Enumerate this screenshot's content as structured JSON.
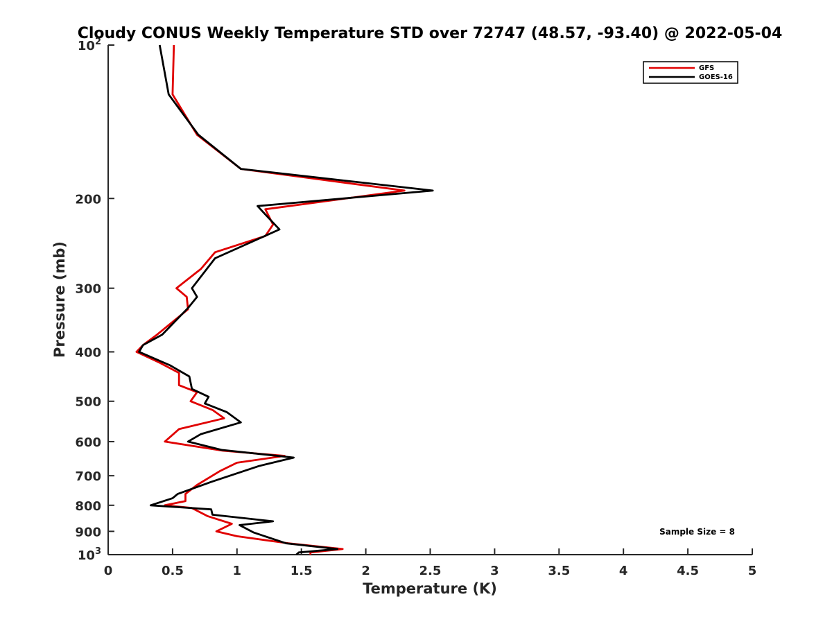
{
  "chart_data": {
    "type": "line",
    "title": "Cloudy CONUS Weekly Temperature STD over 72747 (48.57, -93.40) @ 2022-05-04",
    "xlabel": "Temperature (K)",
    "ylabel": "Pressure (mb)",
    "xlim": [
      0,
      5
    ],
    "ylim": [
      100,
      1000
    ],
    "yscale": "log",
    "y_reversed": true,
    "grid": false,
    "legend_position": "top-right",
    "x_ticks": [
      {
        "value": 0,
        "label": "0"
      },
      {
        "value": 0.5,
        "label": "0.5"
      },
      {
        "value": 1,
        "label": "1"
      },
      {
        "value": 1.5,
        "label": "1.5"
      },
      {
        "value": 2,
        "label": "2"
      },
      {
        "value": 2.5,
        "label": "2.5"
      },
      {
        "value": 3,
        "label": "3"
      },
      {
        "value": 3.5,
        "label": "3.5"
      },
      {
        "value": 4,
        "label": "4"
      },
      {
        "value": 4.5,
        "label": "4.5"
      },
      {
        "value": 5,
        "label": "5"
      }
    ],
    "y_ticks": [
      {
        "value": 100,
        "label": "10",
        "sup": "2"
      },
      {
        "value": 200,
        "label": "200"
      },
      {
        "value": 300,
        "label": "300"
      },
      {
        "value": 400,
        "label": "400"
      },
      {
        "value": 500,
        "label": "500"
      },
      {
        "value": 600,
        "label": "600"
      },
      {
        "value": 700,
        "label": "700"
      },
      {
        "value": 800,
        "label": "800"
      },
      {
        "value": 900,
        "label": "900"
      },
      {
        "value": 1000,
        "label": "10",
        "sup": "3"
      }
    ],
    "annotation": "Sample Size = 8",
    "series": [
      {
        "name": "GFS",
        "color": "#e00000",
        "points": [
          {
            "x": 0.51,
            "y": 100
          },
          {
            "x": 0.5,
            "y": 125
          },
          {
            "x": 0.69,
            "y": 150
          },
          {
            "x": 1.03,
            "y": 175
          },
          {
            "x": 2.3,
            "y": 193
          },
          {
            "x": 1.22,
            "y": 210
          },
          {
            "x": 1.28,
            "y": 225
          },
          {
            "x": 1.22,
            "y": 237
          },
          {
            "x": 0.83,
            "y": 255
          },
          {
            "x": 0.72,
            "y": 275
          },
          {
            "x": 0.53,
            "y": 300
          },
          {
            "x": 0.61,
            "y": 312
          },
          {
            "x": 0.62,
            "y": 330
          },
          {
            "x": 0.38,
            "y": 370
          },
          {
            "x": 0.27,
            "y": 388
          },
          {
            "x": 0.22,
            "y": 400
          },
          {
            "x": 0.4,
            "y": 420
          },
          {
            "x": 0.55,
            "y": 440
          },
          {
            "x": 0.55,
            "y": 465
          },
          {
            "x": 0.69,
            "y": 480
          },
          {
            "x": 0.64,
            "y": 500
          },
          {
            "x": 0.81,
            "y": 520
          },
          {
            "x": 0.9,
            "y": 540
          },
          {
            "x": 0.55,
            "y": 567
          },
          {
            "x": 0.44,
            "y": 600
          },
          {
            "x": 0.89,
            "y": 625
          },
          {
            "x": 1.37,
            "y": 640
          },
          {
            "x": 1.0,
            "y": 660
          },
          {
            "x": 0.87,
            "y": 685
          },
          {
            "x": 0.69,
            "y": 730
          },
          {
            "x": 0.6,
            "y": 760
          },
          {
            "x": 0.6,
            "y": 785
          },
          {
            "x": 0.44,
            "y": 800
          },
          {
            "x": 0.65,
            "y": 810
          },
          {
            "x": 0.77,
            "y": 840
          },
          {
            "x": 0.96,
            "y": 870
          },
          {
            "x": 0.84,
            "y": 900
          },
          {
            "x": 1.0,
            "y": 920
          },
          {
            "x": 1.4,
            "y": 950
          },
          {
            "x": 1.82,
            "y": 975
          },
          {
            "x": 1.57,
            "y": 990
          },
          {
            "x": 1.57,
            "y": 1000
          }
        ]
      },
      {
        "name": "GOES-16",
        "color": "#000000",
        "points": [
          {
            "x": 0.4,
            "y": 100
          },
          {
            "x": 0.47,
            "y": 125
          },
          {
            "x": 0.7,
            "y": 150
          },
          {
            "x": 1.03,
            "y": 175
          },
          {
            "x": 2.52,
            "y": 193
          },
          {
            "x": 1.16,
            "y": 207
          },
          {
            "x": 1.22,
            "y": 215
          },
          {
            "x": 1.33,
            "y": 230
          },
          {
            "x": 0.83,
            "y": 262
          },
          {
            "x": 0.65,
            "y": 300
          },
          {
            "x": 0.69,
            "y": 312
          },
          {
            "x": 0.62,
            "y": 328
          },
          {
            "x": 0.42,
            "y": 370
          },
          {
            "x": 0.27,
            "y": 388
          },
          {
            "x": 0.24,
            "y": 400
          },
          {
            "x": 0.48,
            "y": 425
          },
          {
            "x": 0.63,
            "y": 447
          },
          {
            "x": 0.65,
            "y": 473
          },
          {
            "x": 0.78,
            "y": 490
          },
          {
            "x": 0.75,
            "y": 505
          },
          {
            "x": 0.92,
            "y": 525
          },
          {
            "x": 1.03,
            "y": 550
          },
          {
            "x": 0.72,
            "y": 580
          },
          {
            "x": 0.62,
            "y": 600
          },
          {
            "x": 0.88,
            "y": 623
          },
          {
            "x": 1.44,
            "y": 645
          },
          {
            "x": 1.17,
            "y": 670
          },
          {
            "x": 0.8,
            "y": 720
          },
          {
            "x": 0.54,
            "y": 760
          },
          {
            "x": 0.5,
            "y": 775
          },
          {
            "x": 0.33,
            "y": 800
          },
          {
            "x": 0.8,
            "y": 815
          },
          {
            "x": 0.81,
            "y": 835
          },
          {
            "x": 1.28,
            "y": 860
          },
          {
            "x": 1.02,
            "y": 875
          },
          {
            "x": 1.13,
            "y": 905
          },
          {
            "x": 1.38,
            "y": 950
          },
          {
            "x": 1.78,
            "y": 975
          },
          {
            "x": 1.48,
            "y": 990
          },
          {
            "x": 1.46,
            "y": 1000
          }
        ]
      }
    ]
  }
}
